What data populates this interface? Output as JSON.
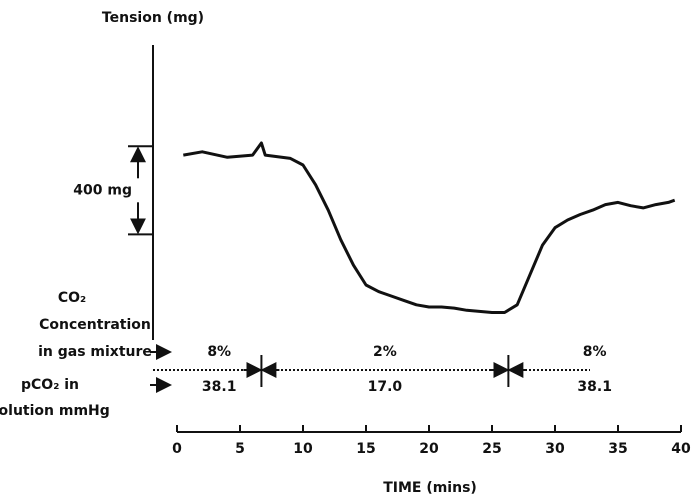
{
  "chart_data": {
    "type": "line",
    "y_axis_label": "Tension (mg)",
    "x_axis_label": "TIME (mins)",
    "x": [
      0.5,
      2,
      4,
      6,
      6.7,
      7,
      9,
      10,
      11,
      12,
      13,
      14,
      15,
      16,
      17,
      18,
      19,
      20,
      21,
      22,
      23,
      24,
      25,
      26,
      27,
      28,
      29,
      30,
      31,
      32,
      33,
      34,
      35,
      36,
      37,
      38,
      39,
      39.5
    ],
    "values": [
      840,
      855,
      830,
      840,
      895,
      840,
      825,
      795,
      705,
      590,
      455,
      340,
      250,
      220,
      200,
      180,
      160,
      150,
      150,
      145,
      135,
      130,
      125,
      125,
      160,
      295,
      430,
      510,
      545,
      570,
      590,
      615,
      625,
      610,
      600,
      615,
      625,
      635
    ],
    "color": "#111111",
    "xlim": [
      0,
      40
    ],
    "xticks": [
      0,
      5,
      10,
      15,
      20,
      25,
      30,
      35,
      40
    ],
    "ylim": [
      0,
      1340
    ],
    "scale_bar": {
      "label": "400 mg",
      "from": 480,
      "to": 880
    },
    "row_labels": {
      "co2": [
        "CO₂",
        "Concentration",
        "in gas mixture"
      ],
      "pco2": [
        "pCO₂ in",
        "solution mmHg"
      ]
    },
    "phase_boundaries": [
      6.7,
      26.3
    ],
    "phases": [
      {
        "start": 0,
        "end": 6.7,
        "co2": "8%",
        "pco2": "38.1"
      },
      {
        "start": 6.7,
        "end": 26.3,
        "co2": "2%",
        "pco2": "17.0"
      },
      {
        "start": 26.3,
        "end": 40,
        "co2": "8%",
        "pco2": "38.1"
      }
    ]
  }
}
